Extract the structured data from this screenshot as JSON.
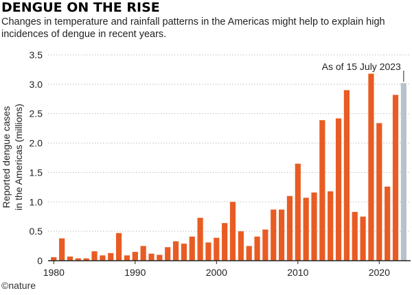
{
  "header": {
    "title": "DENGUE ON THE RISE",
    "subtitle": "Changes in temperature and rainfall patterns in the Americas might help to explain high incidences of dengue in recent years."
  },
  "footer": {
    "credit": "©nature"
  },
  "colors": {
    "bar": "#e85c24",
    "highlight": "#b8c2cc",
    "axis": "#222222",
    "grid": "#bbbbbb"
  },
  "chart_data": {
    "type": "bar",
    "ylabel": [
      "Reported dengue cases",
      "in the Americas (millions)"
    ],
    "xlabel": "",
    "ylim": [
      0,
      3.5
    ],
    "y_ticks": [
      0,
      0.5,
      1.0,
      1.5,
      2.0,
      2.5,
      3.0,
      3.5
    ],
    "y_tick_labels": [
      "0",
      "0.5",
      "1.0",
      "1.5",
      "2.0",
      "2.5",
      "3.0",
      "3.5"
    ],
    "x_ticks": [
      1980,
      1990,
      2000,
      2010,
      2020
    ],
    "x_tick_labels": [
      "1980",
      "1990",
      "2000",
      "2010",
      "2020"
    ],
    "grid": "horizontal",
    "highlight_year": 2023,
    "annotation": "As of 15 July 2023",
    "categories": [
      1980,
      1981,
      1982,
      1983,
      1984,
      1985,
      1986,
      1987,
      1988,
      1989,
      1990,
      1991,
      1992,
      1993,
      1994,
      1995,
      1996,
      1997,
      1998,
      1999,
      2000,
      2001,
      2002,
      2003,
      2004,
      2005,
      2006,
      2007,
      2008,
      2009,
      2010,
      2011,
      2012,
      2013,
      2014,
      2015,
      2016,
      2017,
      2018,
      2019,
      2020,
      2021,
      2022,
      2023
    ],
    "values": [
      0.06,
      0.38,
      0.07,
      0.04,
      0.04,
      0.16,
      0.09,
      0.13,
      0.47,
      0.09,
      0.15,
      0.25,
      0.12,
      0.1,
      0.23,
      0.33,
      0.29,
      0.41,
      0.73,
      0.31,
      0.39,
      0.64,
      1.0,
      0.5,
      0.25,
      0.41,
      0.53,
      0.87,
      0.87,
      1.1,
      1.65,
      1.07,
      1.16,
      2.39,
      1.18,
      2.42,
      2.9,
      0.83,
      0.75,
      3.18,
      2.34,
      1.26,
      2.82,
      3.02
    ]
  }
}
